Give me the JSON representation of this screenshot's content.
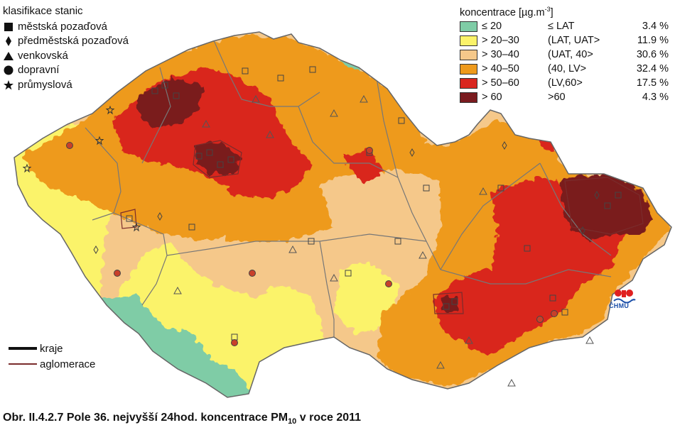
{
  "stations_legend": {
    "title": "klasifikace stanic",
    "items": [
      {
        "label": "městská pozaďová",
        "symbol": "square-icon"
      },
      {
        "label": "předměstská pozaďová",
        "symbol": "diamond-icon"
      },
      {
        "label": "venkovská",
        "symbol": "triangle-icon"
      },
      {
        "label": "dopravní",
        "symbol": "circle-icon"
      },
      {
        "label": "průmyslová",
        "symbol": "star-icon"
      }
    ]
  },
  "concentration_legend": {
    "title_prefix": "koncentrace [µg.m",
    "title_exp": "-3",
    "title_suffix": "]",
    "classes": [
      {
        "range": "≤ 20",
        "interval": "≤ LAT",
        "share": "3.4 %",
        "color": "#7fcca6"
      },
      {
        "range": "> 20–30",
        "interval": "(LAT, UAT>",
        "share": "11.9 %",
        "color": "#fbf36a"
      },
      {
        "range": "> 30–40",
        "interval": "(UAT, 40>",
        "share": "30.6 %",
        "color": "#f5c88a"
      },
      {
        "range": "> 40–50",
        "interval": "(40, LV>",
        "share": "32.4 %",
        "color": "#ee9a1c"
      },
      {
        "range": "> 50–60",
        "interval": "(LV,60>",
        "share": "17.5 %",
        "color": "#d9261f"
      },
      {
        "range": "> 60",
        "interval": ">60",
        "share": "4.3  %",
        "color": "#7a1b1f"
      }
    ]
  },
  "lines_legend": {
    "kraje": "kraje",
    "aglomerace": "aglomerace"
  },
  "logo": {
    "text": "ČHMÚ"
  },
  "caption": {
    "prefix": "Obr. II.4.2.7  Pole 36. nejvyšší 24hod. koncentrace PM",
    "sub": "10",
    "suffix": " v roce 2011"
  }
}
